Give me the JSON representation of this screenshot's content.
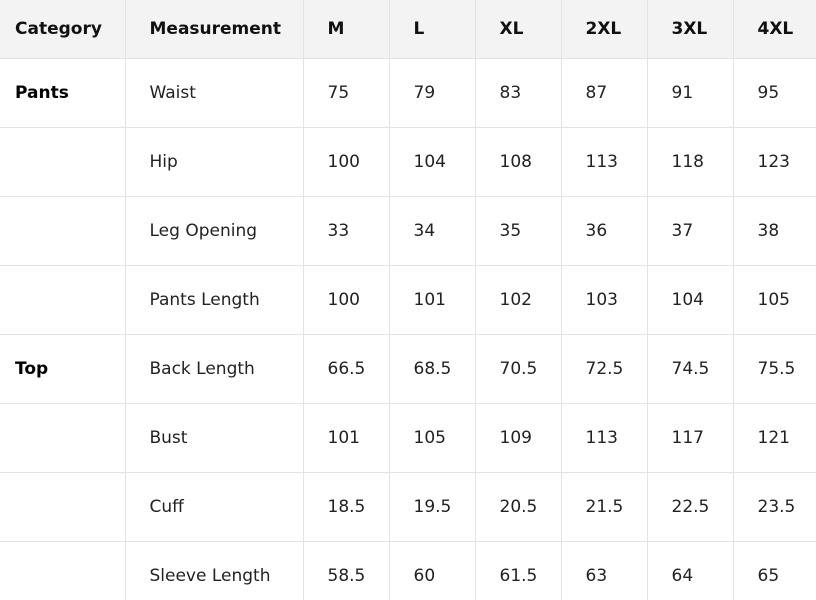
{
  "table": {
    "columns": [
      "Category",
      "Measurement",
      "M",
      "L",
      "XL",
      "2XL",
      "3XL",
      "4XL"
    ],
    "rows": [
      {
        "category": "Pants",
        "measurement": "Waist",
        "values": [
          "75",
          "79",
          "83",
          "87",
          "91",
          "95"
        ]
      },
      {
        "measurement": "Hip",
        "values": [
          "100",
          "104",
          "108",
          "113",
          "118",
          "123"
        ]
      },
      {
        "measurement": "Leg Opening",
        "values": [
          "33",
          "34",
          "35",
          "36",
          "37",
          "38"
        ]
      },
      {
        "measurement": "Pants Length",
        "values": [
          "100",
          "101",
          "102",
          "103",
          "104",
          "105"
        ]
      },
      {
        "category": "Top",
        "measurement": "Back Length",
        "values": [
          "66.5",
          "68.5",
          "70.5",
          "72.5",
          "74.5",
          "75.5"
        ]
      },
      {
        "measurement": "Bust",
        "values": [
          "101",
          "105",
          "109",
          "113",
          "117",
          "121"
        ]
      },
      {
        "measurement": "Cuff",
        "values": [
          "18.5",
          "19.5",
          "20.5",
          "21.5",
          "22.5",
          "23.5"
        ]
      },
      {
        "measurement": "Sleeve Length",
        "values": [
          "58.5",
          "60",
          "61.5",
          "63",
          "64",
          "65"
        ]
      }
    ]
  }
}
